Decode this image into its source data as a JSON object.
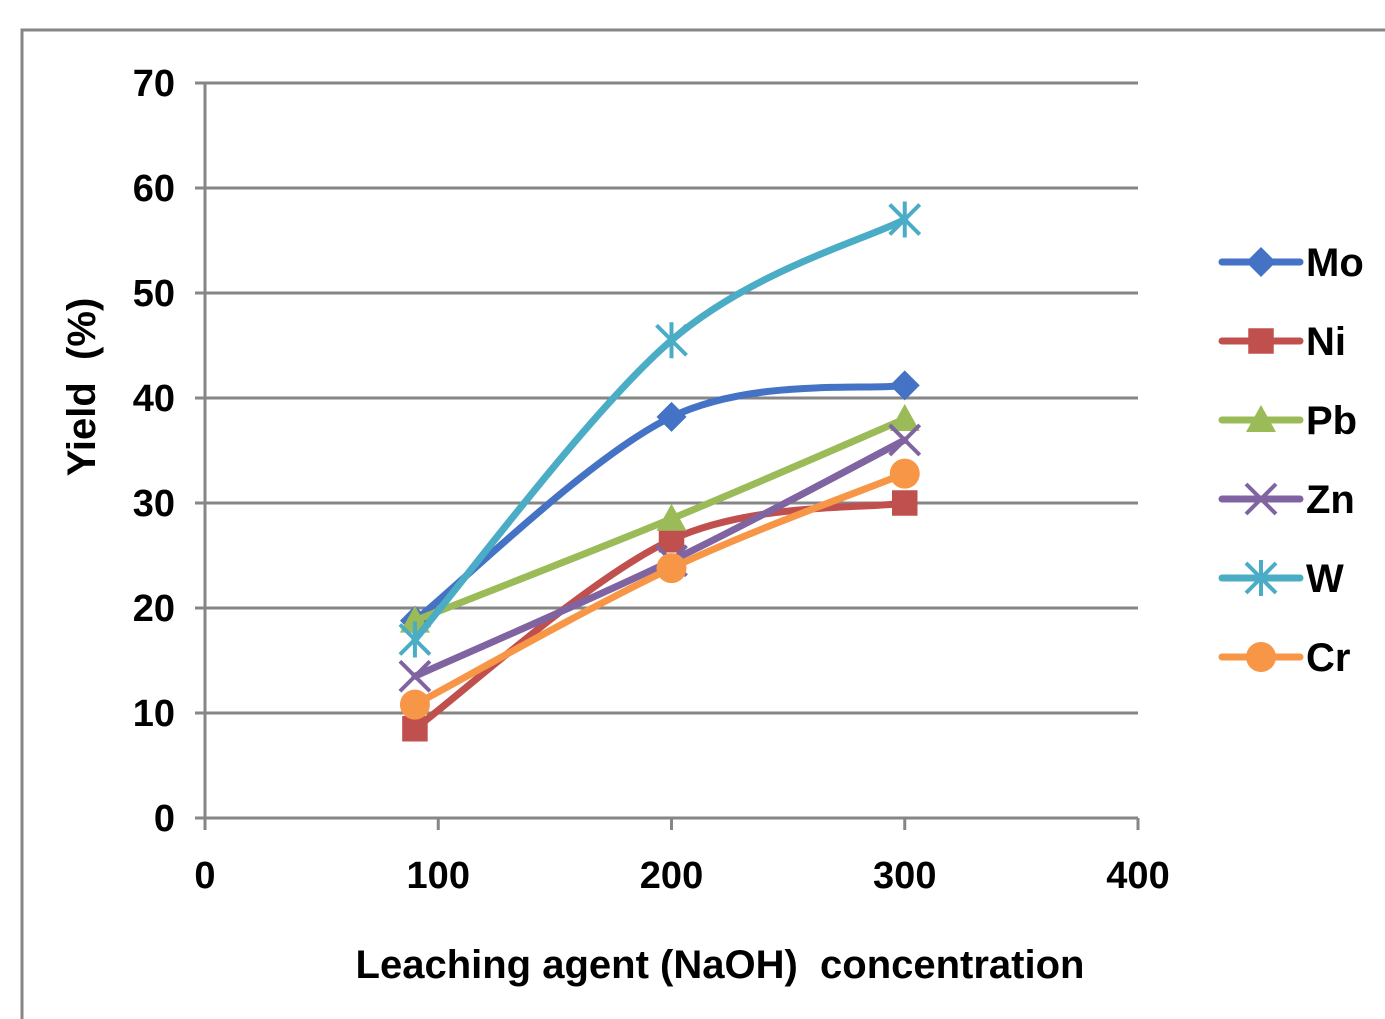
{
  "chart_data": {
    "type": "line",
    "title": "",
    "xlabel": "Leaching agent (NaOH)  concentration",
    "ylabel": "Yield  (%)",
    "xlim": [
      0,
      400
    ],
    "ylim": [
      0,
      70
    ],
    "xticks": [
      0,
      100,
      200,
      300,
      400
    ],
    "yticks": [
      0,
      10,
      20,
      30,
      40,
      50,
      60,
      70
    ],
    "grid": "horizontal",
    "legend_position": "right",
    "series": [
      {
        "name": "Mo",
        "color": "#4472C4",
        "marker": "diamond",
        "x": [
          90,
          200,
          300
        ],
        "y": [
          18.8,
          38.2,
          41.2
        ]
      },
      {
        "name": "Ni",
        "color": "#C0504D",
        "marker": "square",
        "x": [
          90,
          200,
          300
        ],
        "y": [
          8.5,
          26.5,
          30.0
        ]
      },
      {
        "name": "Pb",
        "color": "#9BBB59",
        "marker": "triangle",
        "x": [
          90,
          200,
          300
        ],
        "y": [
          18.8,
          28.5,
          38.0
        ]
      },
      {
        "name": "Zn",
        "color": "#8064A2",
        "marker": "x",
        "x": [
          90,
          200,
          300
        ],
        "y": [
          13.5,
          24.5,
          36.0
        ]
      },
      {
        "name": "W",
        "color": "#4BACC6",
        "marker": "star",
        "x": [
          90,
          200,
          300
        ],
        "y": [
          17.0,
          45.5,
          57.0
        ]
      },
      {
        "name": "Cr",
        "color": "#F79646",
        "marker": "circle",
        "x": [
          90,
          200,
          300
        ],
        "y": [
          10.8,
          23.8,
          32.8
        ]
      }
    ]
  }
}
